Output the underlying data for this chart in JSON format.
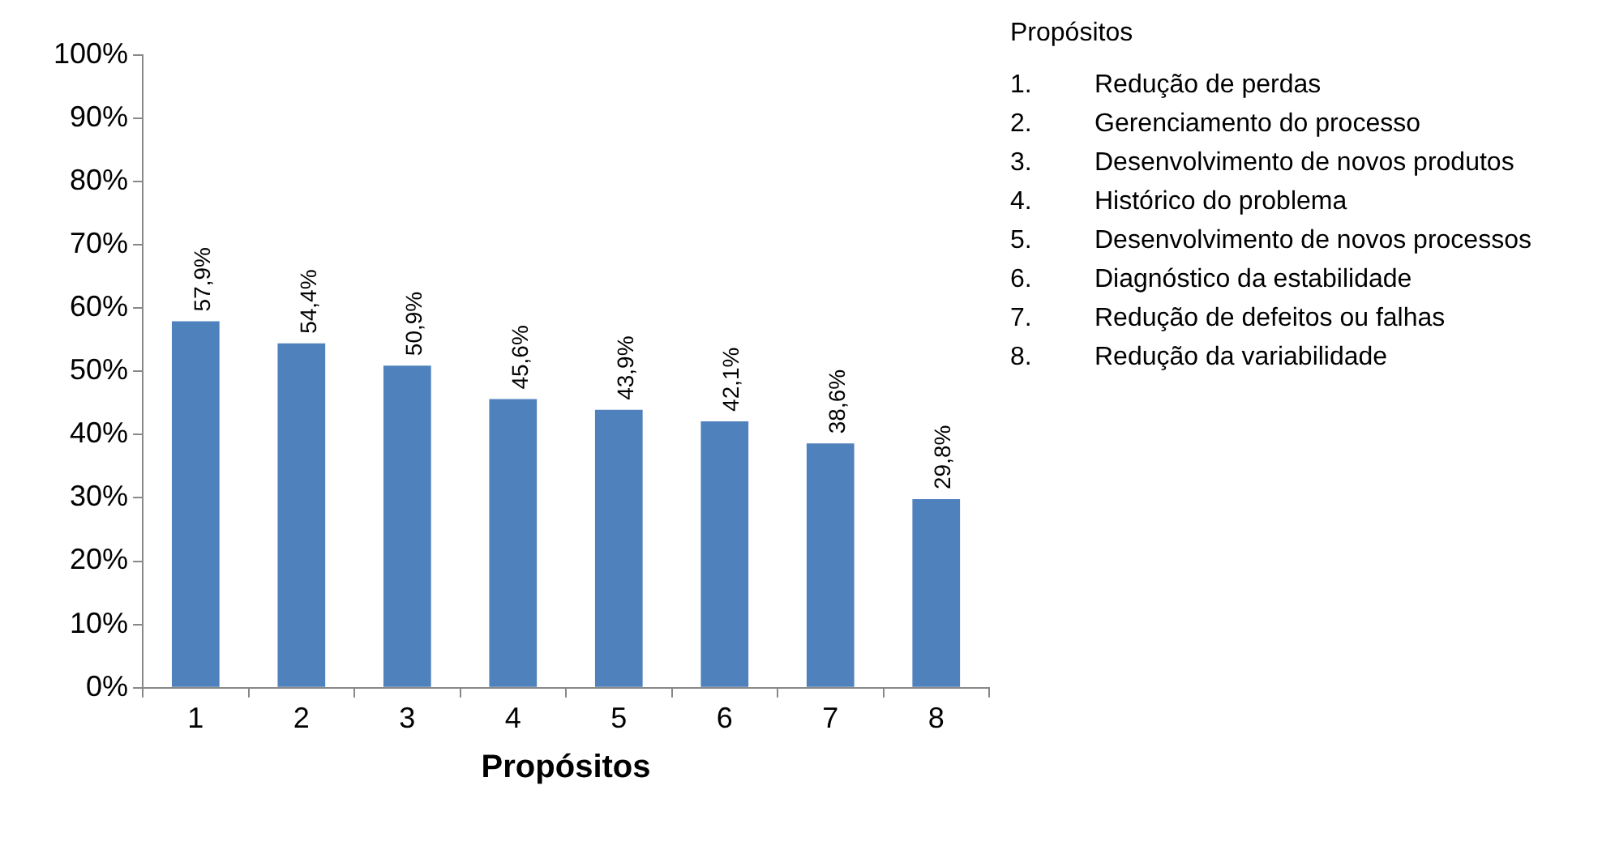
{
  "chart_data": {
    "type": "bar",
    "xlabel": "Propósitos",
    "categories": [
      "1",
      "2",
      "3",
      "4",
      "5",
      "6",
      "7",
      "8"
    ],
    "values": [
      57.9,
      54.4,
      50.9,
      45.6,
      43.9,
      42.1,
      38.6,
      29.8
    ],
    "color": "#4f81bd",
    "value_labels": [
      "57,9%",
      "54,4%",
      "50,9%",
      "45,6%",
      "43,9%",
      "42,1%",
      "38,6%",
      "29,8%"
    ],
    "ylim": [
      0,
      100
    ],
    "yticks": [
      {
        "value": 0,
        "label": "0%"
      },
      {
        "value": 10,
        "label": "10%"
      },
      {
        "value": 20,
        "label": "20%"
      },
      {
        "value": 30,
        "label": "30%"
      },
      {
        "value": 40,
        "label": "40%"
      },
      {
        "value": 50,
        "label": "50%"
      },
      {
        "value": 60,
        "label": "60%"
      },
      {
        "value": 70,
        "label": "70%"
      },
      {
        "value": 80,
        "label": "80%"
      },
      {
        "value": 90,
        "label": "90%"
      },
      {
        "value": 100,
        "label": "100%"
      }
    ],
    "grid": false,
    "legend": false,
    "annotations": [
      "Propósitos",
      "1. Redução de perdas",
      "2. Gerenciamento do processo",
      "3. Desenvolvimento de novos produtos",
      "4. Histórico do problema",
      "5. Desenvolvimento de novos processos",
      "6. Diagnóstico da estabilidade",
      "7. Redução de defeitos ou falhas",
      "8. Redução da variabilidade"
    ]
  }
}
